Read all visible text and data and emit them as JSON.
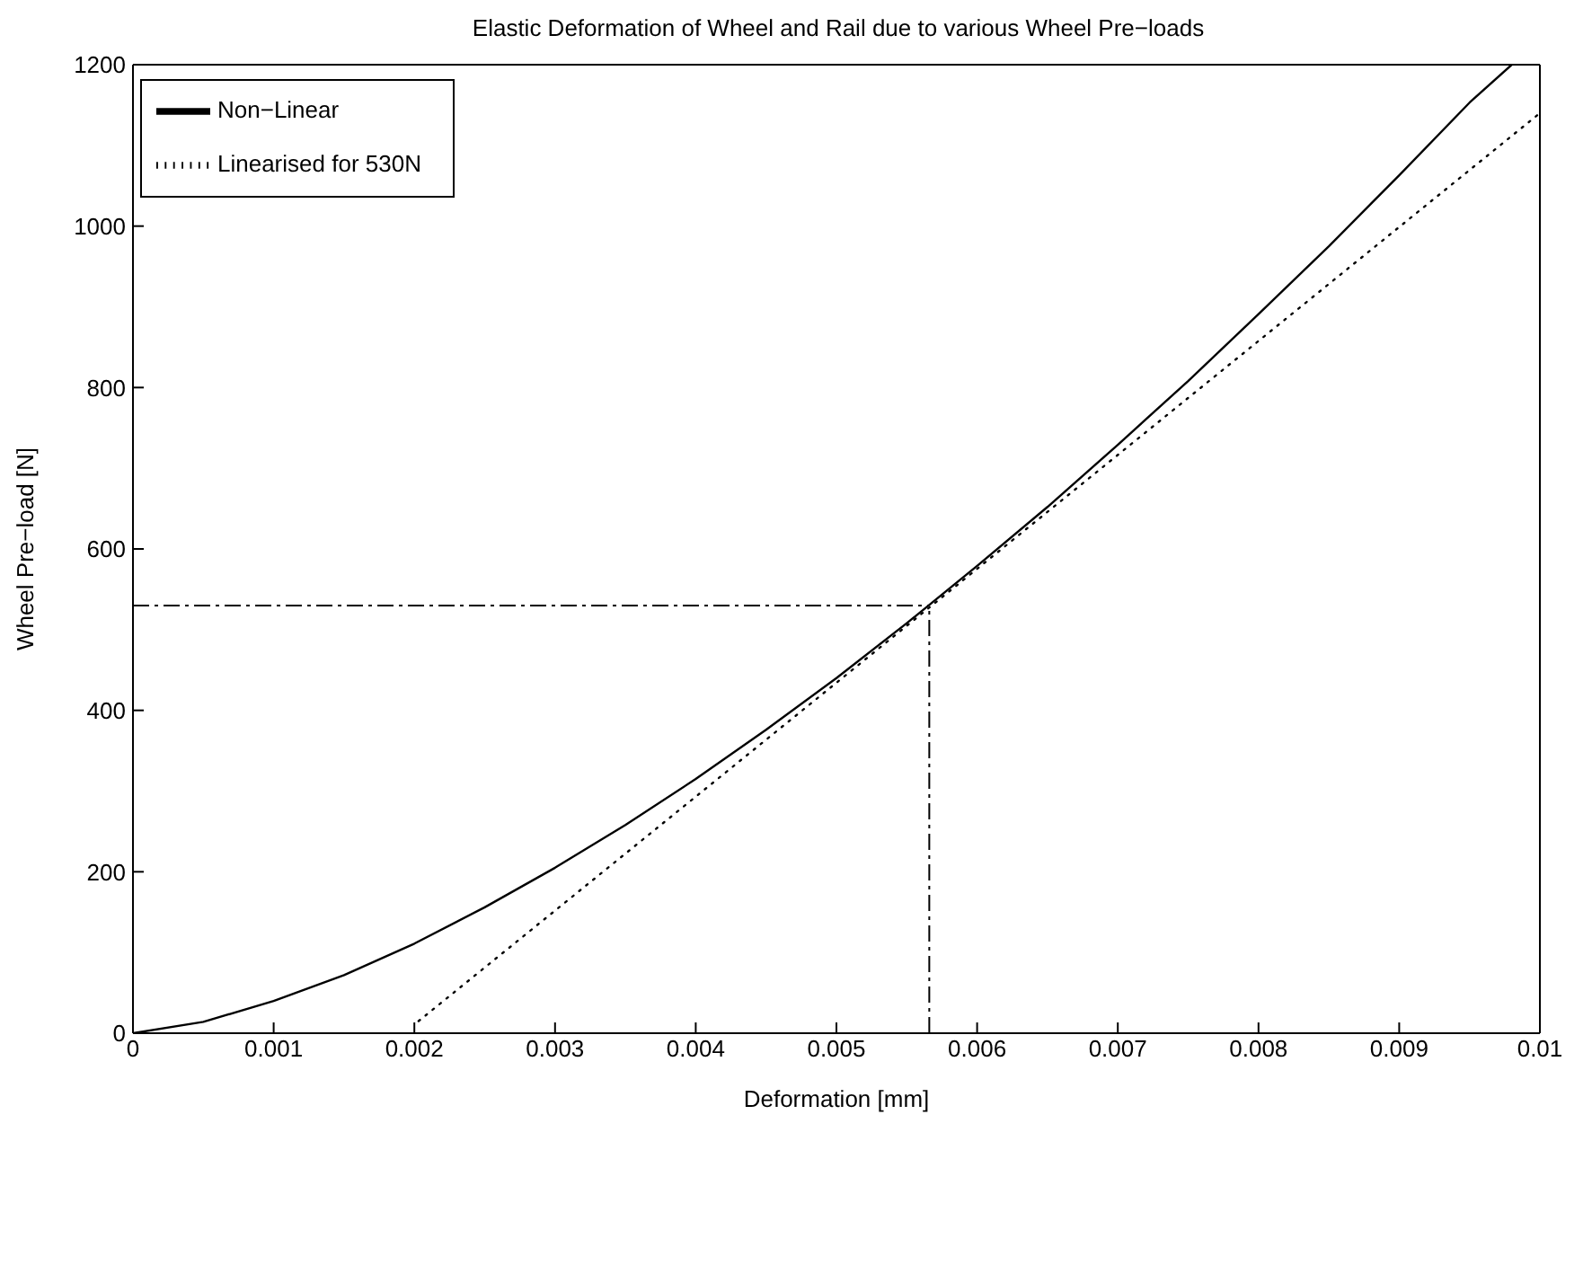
{
  "chart_data": {
    "type": "line",
    "title": "Elastic Deformation of Wheel and Rail due to various Wheel Pre−loads",
    "xlabel": "Deformation [mm]",
    "ylabel": "Wheel Pre−load [N]",
    "xlim": [
      0,
      0.01
    ],
    "xticks": [
      0,
      0.001,
      0.002,
      0.003,
      0.004,
      0.005,
      0.006,
      0.007,
      0.008,
      0.009,
      0.01
    ],
    "ylim": [
      0,
      1200
    ],
    "yticks": [
      0,
      200,
      400,
      600,
      800,
      1000,
      1200
    ],
    "legend": "top left",
    "marker": "none",
    "series": [
      {
        "name": "Non−Linear",
        "color": "#000000",
        "line_style": "solid",
        "x": [
          0,
          0.0005,
          0.001,
          0.0015,
          0.002,
          0.0025,
          0.003,
          0.0035,
          0.004,
          0.0045,
          0.005,
          0.0055,
          0.006,
          0.0065,
          0.007,
          0.0075,
          0.008,
          0.0085,
          0.009,
          0.0095,
          0.0098
        ],
        "values": [
          0,
          14,
          40,
          72,
          111,
          156,
          205,
          258,
          315,
          376,
          440,
          508,
          579,
          652,
          729,
          808,
          891,
          975,
          1063,
          1153,
          1200
        ]
      },
      {
        "name": "Linearised for 530N",
        "color": "#000000",
        "line_style": "dotted",
        "x": [
          0.00203,
          0.01
        ],
        "values": [
          15,
          1140
        ]
      }
    ],
    "ref_lines": [
      {
        "axis": "y",
        "value": 530,
        "color": "#000000",
        "line_style": "dashed"
      },
      {
        "axis": "x",
        "value": 0.00566,
        "color": "#000000",
        "line_style": "dashed"
      }
    ]
  }
}
